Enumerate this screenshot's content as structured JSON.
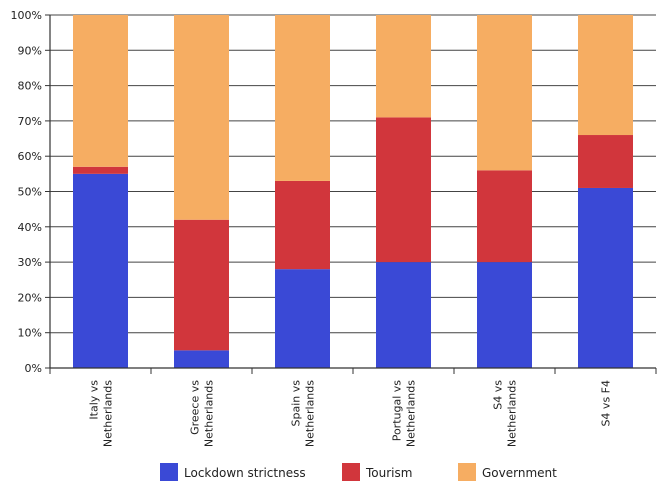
{
  "chart_data": {
    "type": "bar",
    "stacked": true,
    "categories": [
      [
        "Italy vs",
        "Netherlands"
      ],
      [
        "Greece vs",
        "Netherlands"
      ],
      [
        "Spain vs",
        "Netherlands"
      ],
      [
        "Portugal vs",
        "Netherlands"
      ],
      [
        "S4 vs",
        "Netherlands"
      ],
      [
        "S4 vs F4"
      ]
    ],
    "series": [
      {
        "name": "Lockdown strictness",
        "color": "#3a49d6",
        "values": [
          55,
          5,
          28,
          30,
          30,
          51
        ]
      },
      {
        "name": "Tourism",
        "color": "#d1363c",
        "values": [
          2,
          37,
          25,
          41,
          26,
          15
        ]
      },
      {
        "name": "Government",
        "color": "#f6ad62",
        "values": [
          43,
          58,
          47,
          29,
          44,
          34
        ]
      }
    ],
    "y_ticks": [
      "0%",
      "10%",
      "20%",
      "30%",
      "40%",
      "50%",
      "60%",
      "70%",
      "80%",
      "90%",
      "100%"
    ],
    "ylim": [
      0,
      100
    ],
    "grid": true,
    "legend_position": "bottom"
  }
}
